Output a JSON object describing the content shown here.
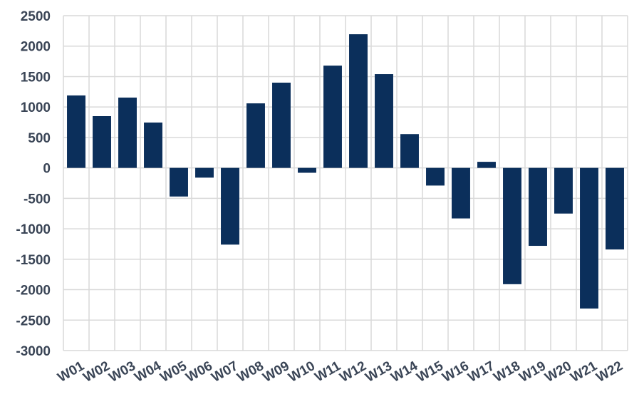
{
  "chart_data": {
    "type": "bar",
    "title": "",
    "xlabel": "",
    "ylabel": "",
    "categories": [
      "W01",
      "W02",
      "W03",
      "W04",
      "W05",
      "W06",
      "W07",
      "W08",
      "W09",
      "W10",
      "W11",
      "W12",
      "W13",
      "W14",
      "W15",
      "W16",
      "W17",
      "W18",
      "W19",
      "W20",
      "W21",
      "W22"
    ],
    "values": [
      1190,
      850,
      1155,
      745,
      -470,
      -160,
      -1260,
      1060,
      1400,
      -80,
      1680,
      2195,
      1540,
      555,
      -290,
      -830,
      100,
      -1910,
      -1280,
      -750,
      -2310,
      -1340
    ],
    "ylim": [
      -3000,
      2500
    ],
    "yticks": [
      2500,
      2000,
      1500,
      1000,
      500,
      0,
      -500,
      -1000,
      -1500,
      -2000,
      -2500,
      -3000
    ],
    "grid": true,
    "bar_color": "#0b2f5b"
  }
}
